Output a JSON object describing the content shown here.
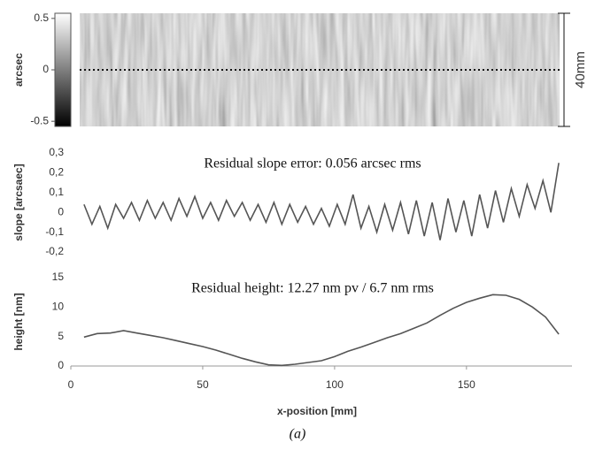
{
  "chart_data": [
    {
      "type": "heatmap",
      "colorbar_label": "arcsec",
      "colorbar_lim": [
        -0.55,
        0.55
      ],
      "colorbar_ticks": [
        0.5,
        0,
        -0.5
      ],
      "annotation": "40mm"
    },
    {
      "type": "line",
      "ylabel": "slope [arcsaec]",
      "annotation": "Residual slope error: 0.056 arcsec rms",
      "xlim": [
        0,
        190
      ],
      "ylim": [
        -0.2,
        0.3
      ],
      "yticks": [
        {
          "value": 0.3,
          "label": "0,3"
        },
        {
          "value": 0.2,
          "label": "0,2"
        },
        {
          "value": 0.1,
          "label": "0,1"
        },
        0,
        {
          "value": -0.1,
          "label": "-0,1"
        },
        {
          "value": -0.2,
          "label": "-0,2"
        }
      ],
      "x": [
        5,
        8,
        11,
        14,
        17,
        20,
        23,
        26,
        29,
        32,
        35,
        38,
        41,
        44,
        47,
        50,
        53,
        56,
        59,
        62,
        65,
        68,
        71,
        74,
        77,
        80,
        83,
        86,
        89,
        92,
        95,
        98,
        101,
        104,
        107,
        110,
        113,
        116,
        119,
        122,
        125,
        128,
        131,
        134,
        137,
        140,
        143,
        146,
        149,
        152,
        155,
        158,
        161,
        164,
        167,
        170,
        173,
        176,
        179,
        182,
        185
      ],
      "series": [
        {
          "color": "#555555",
          "values": [
            0.04,
            -0.06,
            0.03,
            -0.08,
            0.04,
            -0.03,
            0.05,
            -0.04,
            0.06,
            -0.03,
            0.05,
            -0.04,
            0.07,
            -0.02,
            0.08,
            -0.03,
            0.05,
            -0.04,
            0.06,
            -0.02,
            0.05,
            -0.04,
            0.04,
            -0.05,
            0.05,
            -0.06,
            0.04,
            -0.05,
            0.03,
            -0.06,
            0.02,
            -0.07,
            0.04,
            -0.06,
            0.09,
            -0.08,
            0.03,
            -0.1,
            0.04,
            -0.09,
            0.05,
            -0.11,
            0.06,
            -0.12,
            0.05,
            -0.14,
            0.07,
            -0.1,
            0.06,
            -0.12,
            0.09,
            -0.08,
            0.11,
            -0.05,
            0.12,
            -0.02,
            0.14,
            0.02,
            0.16,
            0.0,
            0.25
          ]
        }
      ]
    },
    {
      "type": "line",
      "ylabel": "height [nm]",
      "xlabel": "x-position [mm]",
      "annotation": "Residual height: 12.27 nm pv / 6.7 nm rms",
      "xlim": [
        0,
        190
      ],
      "ylim": [
        0,
        15
      ],
      "xticks": [
        0,
        50,
        100,
        150
      ],
      "yticks": [
        0,
        5,
        10,
        15
      ],
      "x": [
        5,
        10,
        15,
        20,
        25,
        30,
        35,
        40,
        45,
        50,
        55,
        60,
        65,
        70,
        75,
        80,
        85,
        90,
        95,
        100,
        105,
        110,
        115,
        120,
        125,
        130,
        135,
        140,
        145,
        150,
        155,
        160,
        165,
        170,
        175,
        180,
        185
      ],
      "series": [
        {
          "color": "#555555",
          "values": [
            4.9,
            5.5,
            5.6,
            6.0,
            5.6,
            5.2,
            4.8,
            4.3,
            3.8,
            3.3,
            2.7,
            2.0,
            1.3,
            0.7,
            0.2,
            0.1,
            0.3,
            0.6,
            0.9,
            1.6,
            2.5,
            3.2,
            4.0,
            4.8,
            5.5,
            6.4,
            7.3,
            8.6,
            9.8,
            10.8,
            11.5,
            12.1,
            12.0,
            11.3,
            10.0,
            8.3,
            5.4
          ]
        }
      ]
    }
  ],
  "caption": "(a)"
}
